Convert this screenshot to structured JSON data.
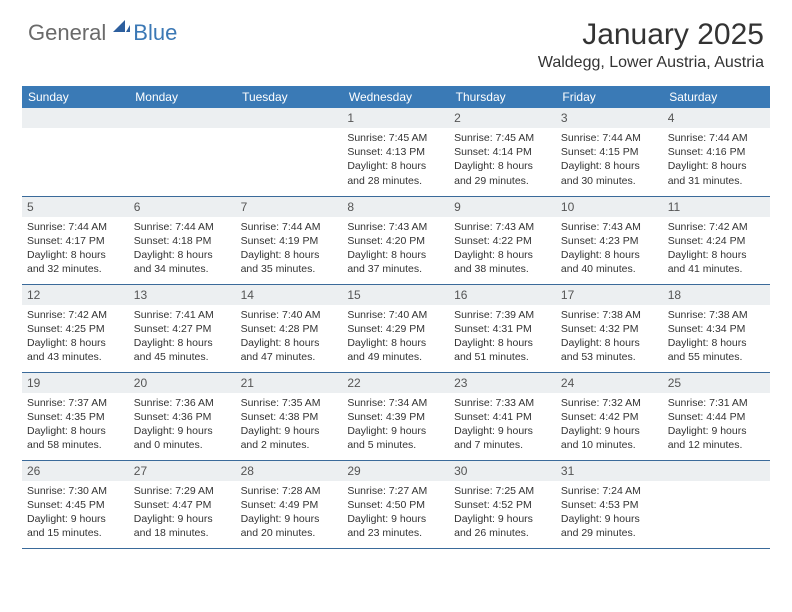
{
  "logo": {
    "general": "General",
    "blue": "Blue"
  },
  "title": "January 2025",
  "location": "Waldegg, Lower Austria, Austria",
  "weekdays": [
    "Sunday",
    "Monday",
    "Tuesday",
    "Wednesday",
    "Thursday",
    "Friday",
    "Saturday"
  ],
  "header_bg": "#3a7ab6",
  "daynum_bg": "#eceff1",
  "border_color": "#3a6a9a",
  "weeks": [
    [
      null,
      null,
      null,
      {
        "n": "1",
        "sr": "7:45 AM",
        "ss": "4:13 PM",
        "dl": "8 hours and 28 minutes."
      },
      {
        "n": "2",
        "sr": "7:45 AM",
        "ss": "4:14 PM",
        "dl": "8 hours and 29 minutes."
      },
      {
        "n": "3",
        "sr": "7:44 AM",
        "ss": "4:15 PM",
        "dl": "8 hours and 30 minutes."
      },
      {
        "n": "4",
        "sr": "7:44 AM",
        "ss": "4:16 PM",
        "dl": "8 hours and 31 minutes."
      }
    ],
    [
      {
        "n": "5",
        "sr": "7:44 AM",
        "ss": "4:17 PM",
        "dl": "8 hours and 32 minutes."
      },
      {
        "n": "6",
        "sr": "7:44 AM",
        "ss": "4:18 PM",
        "dl": "8 hours and 34 minutes."
      },
      {
        "n": "7",
        "sr": "7:44 AM",
        "ss": "4:19 PM",
        "dl": "8 hours and 35 minutes."
      },
      {
        "n": "8",
        "sr": "7:43 AM",
        "ss": "4:20 PM",
        "dl": "8 hours and 37 minutes."
      },
      {
        "n": "9",
        "sr": "7:43 AM",
        "ss": "4:22 PM",
        "dl": "8 hours and 38 minutes."
      },
      {
        "n": "10",
        "sr": "7:43 AM",
        "ss": "4:23 PM",
        "dl": "8 hours and 40 minutes."
      },
      {
        "n": "11",
        "sr": "7:42 AM",
        "ss": "4:24 PM",
        "dl": "8 hours and 41 minutes."
      }
    ],
    [
      {
        "n": "12",
        "sr": "7:42 AM",
        "ss": "4:25 PM",
        "dl": "8 hours and 43 minutes."
      },
      {
        "n": "13",
        "sr": "7:41 AM",
        "ss": "4:27 PM",
        "dl": "8 hours and 45 minutes."
      },
      {
        "n": "14",
        "sr": "7:40 AM",
        "ss": "4:28 PM",
        "dl": "8 hours and 47 minutes."
      },
      {
        "n": "15",
        "sr": "7:40 AM",
        "ss": "4:29 PM",
        "dl": "8 hours and 49 minutes."
      },
      {
        "n": "16",
        "sr": "7:39 AM",
        "ss": "4:31 PM",
        "dl": "8 hours and 51 minutes."
      },
      {
        "n": "17",
        "sr": "7:38 AM",
        "ss": "4:32 PM",
        "dl": "8 hours and 53 minutes."
      },
      {
        "n": "18",
        "sr": "7:38 AM",
        "ss": "4:34 PM",
        "dl": "8 hours and 55 minutes."
      }
    ],
    [
      {
        "n": "19",
        "sr": "7:37 AM",
        "ss": "4:35 PM",
        "dl": "8 hours and 58 minutes."
      },
      {
        "n": "20",
        "sr": "7:36 AM",
        "ss": "4:36 PM",
        "dl": "9 hours and 0 minutes."
      },
      {
        "n": "21",
        "sr": "7:35 AM",
        "ss": "4:38 PM",
        "dl": "9 hours and 2 minutes."
      },
      {
        "n": "22",
        "sr": "7:34 AM",
        "ss": "4:39 PM",
        "dl": "9 hours and 5 minutes."
      },
      {
        "n": "23",
        "sr": "7:33 AM",
        "ss": "4:41 PM",
        "dl": "9 hours and 7 minutes."
      },
      {
        "n": "24",
        "sr": "7:32 AM",
        "ss": "4:42 PM",
        "dl": "9 hours and 10 minutes."
      },
      {
        "n": "25",
        "sr": "7:31 AM",
        "ss": "4:44 PM",
        "dl": "9 hours and 12 minutes."
      }
    ],
    [
      {
        "n": "26",
        "sr": "7:30 AM",
        "ss": "4:45 PM",
        "dl": "9 hours and 15 minutes."
      },
      {
        "n": "27",
        "sr": "7:29 AM",
        "ss": "4:47 PM",
        "dl": "9 hours and 18 minutes."
      },
      {
        "n": "28",
        "sr": "7:28 AM",
        "ss": "4:49 PM",
        "dl": "9 hours and 20 minutes."
      },
      {
        "n": "29",
        "sr": "7:27 AM",
        "ss": "4:50 PM",
        "dl": "9 hours and 23 minutes."
      },
      {
        "n": "30",
        "sr": "7:25 AM",
        "ss": "4:52 PM",
        "dl": "9 hours and 26 minutes."
      },
      {
        "n": "31",
        "sr": "7:24 AM",
        "ss": "4:53 PM",
        "dl": "9 hours and 29 minutes."
      },
      null
    ]
  ],
  "labels": {
    "sunrise": "Sunrise:",
    "sunset": "Sunset:",
    "daylight": "Daylight:"
  }
}
